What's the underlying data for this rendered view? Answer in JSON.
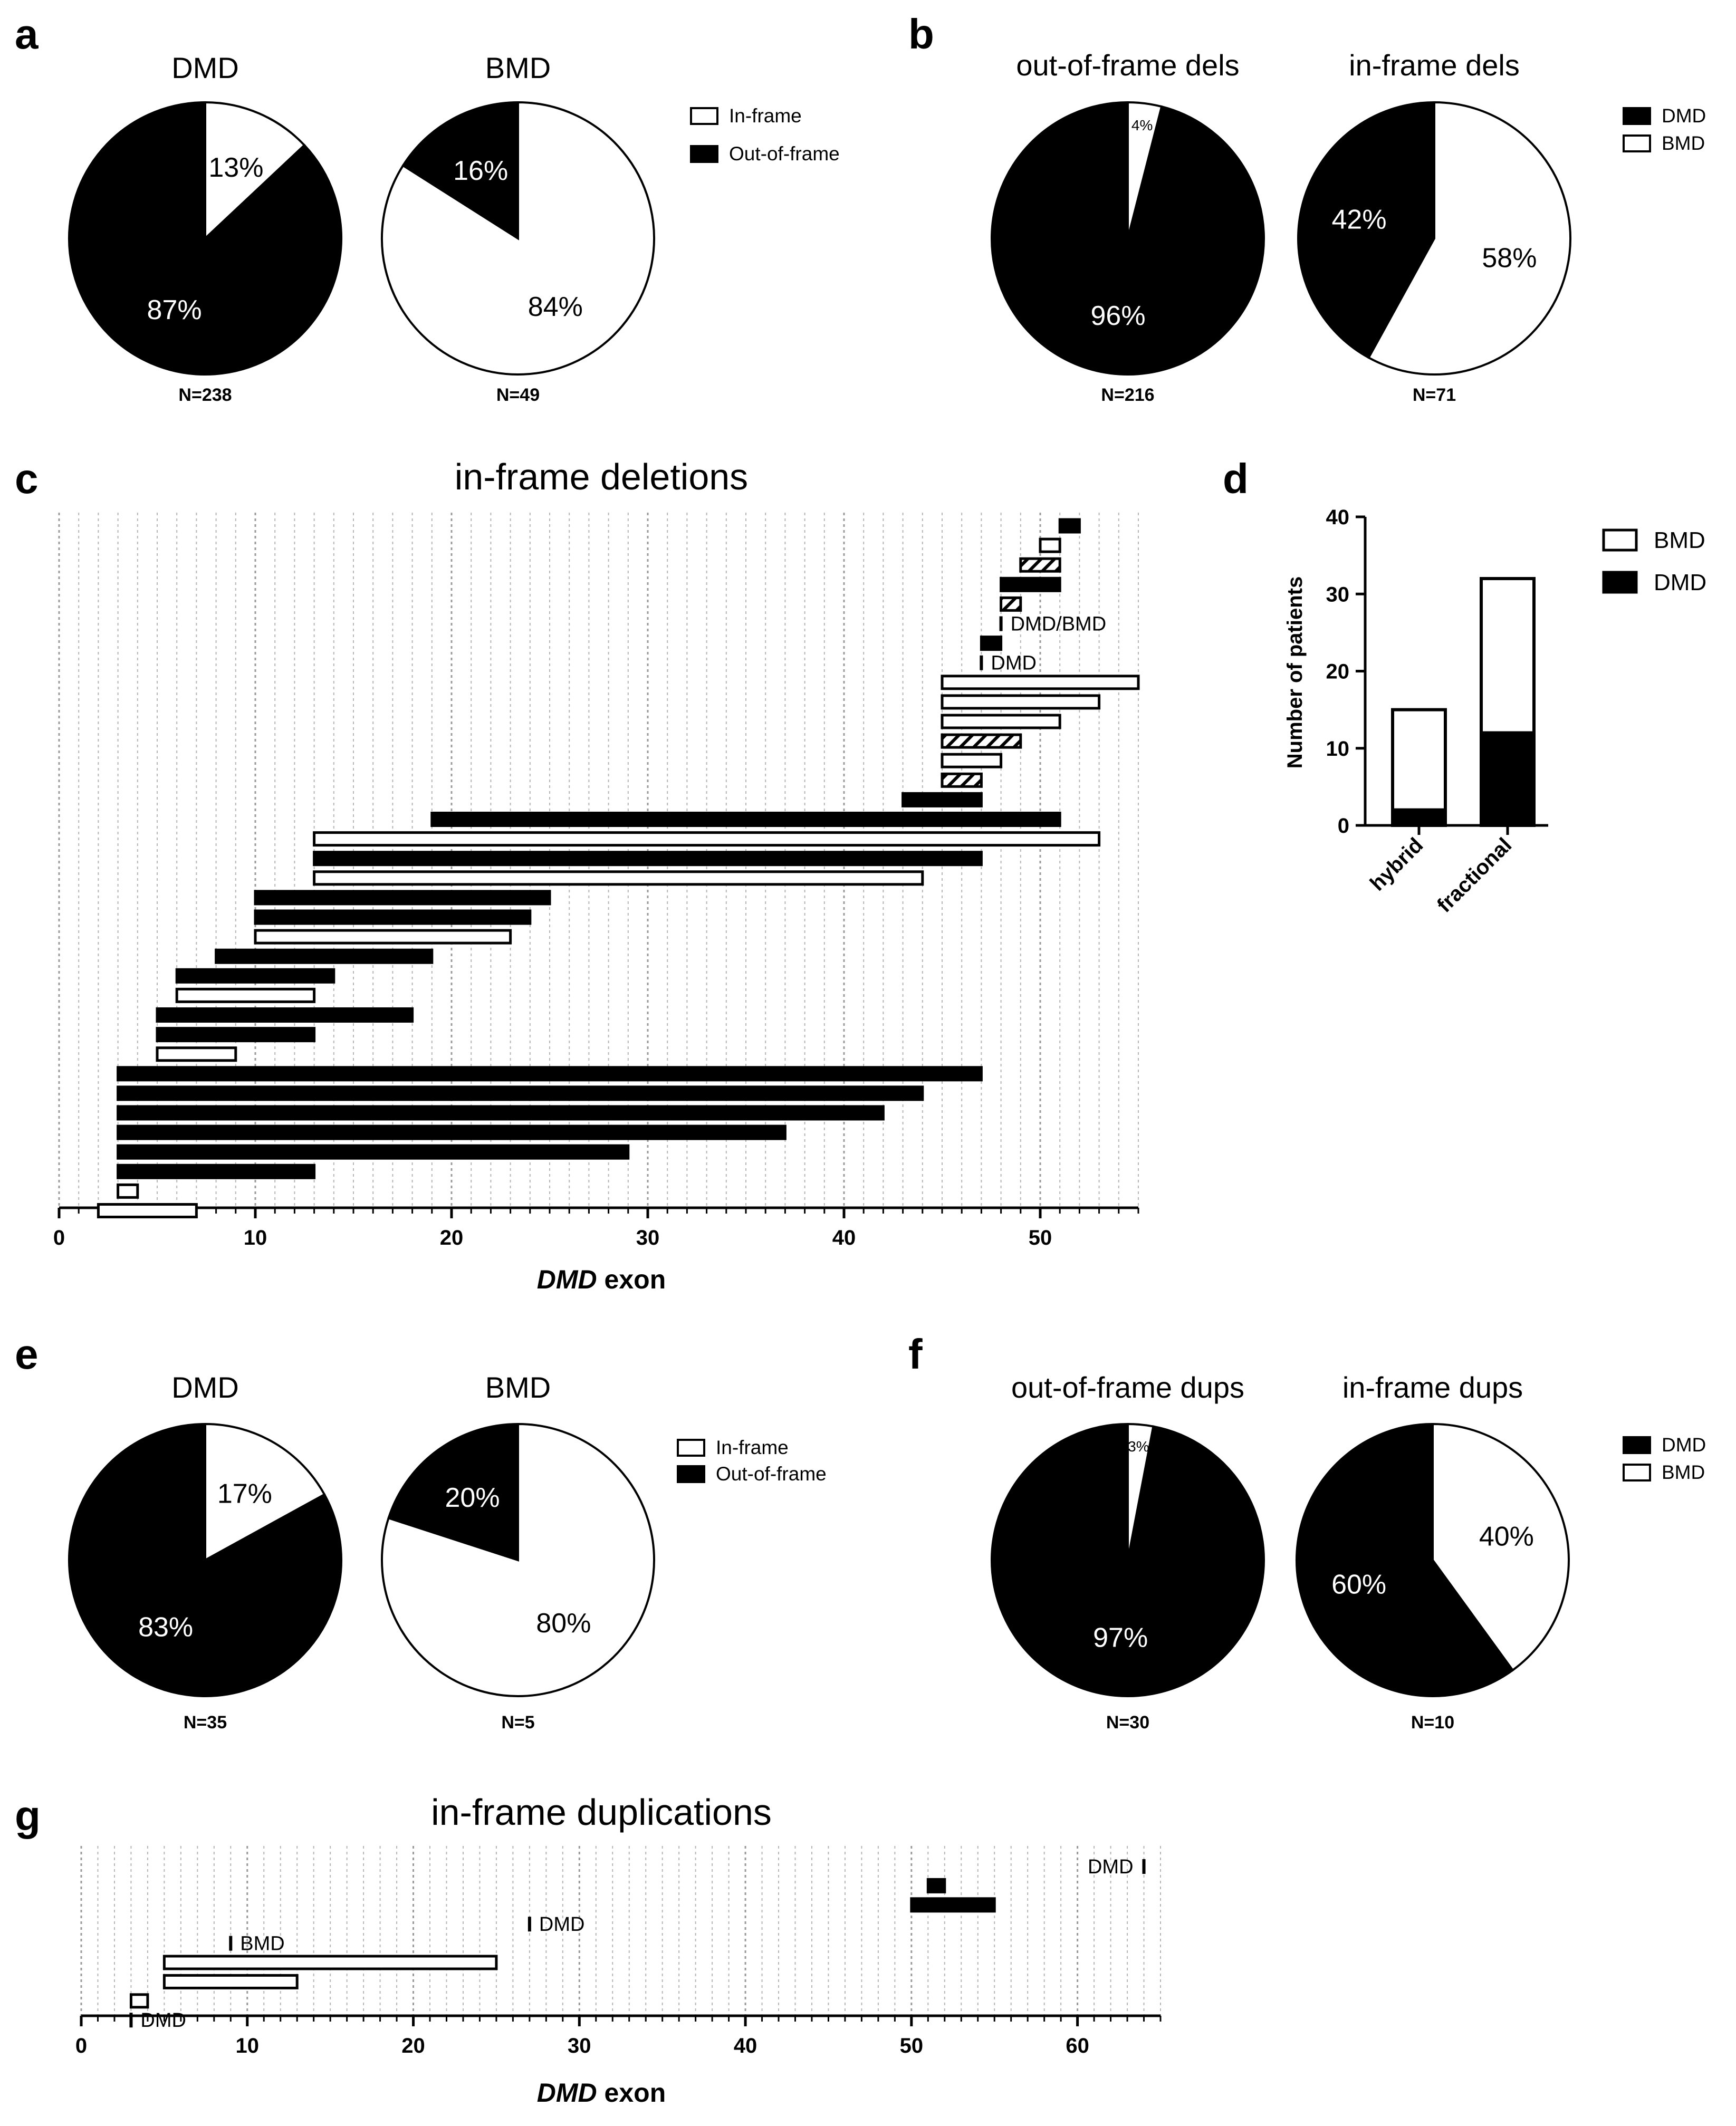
{
  "colors": {
    "dmd": "#000000",
    "bmd": "#ffffff",
    "grid": "#b5b5b5",
    "axis": "#000000"
  },
  "chart_data": [
    {
      "id": "a",
      "panel_letter": "a",
      "type": "pie",
      "legend": [
        "In-frame",
        "Out-of-frame"
      ],
      "pies": [
        {
          "title": "DMD",
          "n_label": "N=238",
          "slices": [
            {
              "label": "In-frame",
              "value": 13,
              "text": "13%",
              "fill": "white"
            },
            {
              "label": "Out-of-frame",
              "value": 87,
              "text": "87%",
              "fill": "black"
            }
          ]
        },
        {
          "title": "BMD",
          "n_label": "N=49",
          "slices": [
            {
              "label": "In-frame",
              "value": 84,
              "text": "84%",
              "fill": "white"
            },
            {
              "label": "Out-of-frame",
              "value": 16,
              "text": "16%",
              "fill": "black"
            }
          ]
        }
      ]
    },
    {
      "id": "b",
      "panel_letter": "b",
      "type": "pie",
      "legend": [
        "DMD",
        "BMD"
      ],
      "pies": [
        {
          "title": "out-of-frame dels",
          "n_label": "N=216",
          "slices": [
            {
              "label": "DMD",
              "value": 96,
              "text": "96%",
              "fill": "black"
            },
            {
              "label": "BMD",
              "value": 4,
              "text": "4%",
              "fill": "white"
            }
          ]
        },
        {
          "title": "in-frame dels",
          "n_label": "N=71",
          "slices": [
            {
              "label": "DMD",
              "value": 42,
              "text": "42%",
              "fill": "black"
            },
            {
              "label": "BMD",
              "value": 58,
              "text": "58%",
              "fill": "white"
            }
          ]
        }
      ]
    },
    {
      "id": "c",
      "panel_letter": "c",
      "type": "range-bar",
      "title": "in-frame deletions",
      "xlabel_italic": "DMD",
      "xlabel_rest": " exon",
      "xlim": [
        0,
        55
      ],
      "xticks": [
        0,
        10,
        20,
        30,
        40,
        50
      ],
      "bars": [
        {
          "start": 51,
          "end": 52,
          "fill": "black"
        },
        {
          "start": 50,
          "end": 51,
          "fill": "white"
        },
        {
          "start": 49,
          "end": 51,
          "fill": "hatch"
        },
        {
          "start": 48,
          "end": 51,
          "fill": "black"
        },
        {
          "start": 48,
          "end": 49,
          "fill": "hatch"
        },
        {
          "start": 48,
          "end": 48,
          "fill": "line",
          "label": "DMD/BMD"
        },
        {
          "start": 47,
          "end": 48,
          "fill": "black"
        },
        {
          "start": 47,
          "end": 47,
          "fill": "line",
          "label": "DMD"
        },
        {
          "start": 45,
          "end": 55,
          "fill": "white"
        },
        {
          "start": 45,
          "end": 53,
          "fill": "white"
        },
        {
          "start": 45,
          "end": 51,
          "fill": "white"
        },
        {
          "start": 45,
          "end": 49,
          "fill": "hatch"
        },
        {
          "start": 45,
          "end": 48,
          "fill": "white"
        },
        {
          "start": 45,
          "end": 47,
          "fill": "hatch"
        },
        {
          "start": 43,
          "end": 47,
          "fill": "black"
        },
        {
          "start": 19,
          "end": 51,
          "fill": "black"
        },
        {
          "start": 13,
          "end": 53,
          "fill": "white"
        },
        {
          "start": 13,
          "end": 47,
          "fill": "black"
        },
        {
          "start": 13,
          "end": 44,
          "fill": "white"
        },
        {
          "start": 10,
          "end": 25,
          "fill": "black"
        },
        {
          "start": 10,
          "end": 24,
          "fill": "black"
        },
        {
          "start": 10,
          "end": 23,
          "fill": "white"
        },
        {
          "start": 8,
          "end": 19,
          "fill": "black"
        },
        {
          "start": 6,
          "end": 14,
          "fill": "black"
        },
        {
          "start": 6,
          "end": 13,
          "fill": "white"
        },
        {
          "start": 5,
          "end": 18,
          "fill": "black"
        },
        {
          "start": 5,
          "end": 13,
          "fill": "black"
        },
        {
          "start": 5,
          "end": 9,
          "fill": "white"
        },
        {
          "start": 3,
          "end": 47,
          "fill": "black"
        },
        {
          "start": 3,
          "end": 44,
          "fill": "black"
        },
        {
          "start": 3,
          "end": 42,
          "fill": "black"
        },
        {
          "start": 3,
          "end": 37,
          "fill": "black"
        },
        {
          "start": 3,
          "end": 29,
          "fill": "black"
        },
        {
          "start": 3,
          "end": 13,
          "fill": "black"
        },
        {
          "start": 3,
          "end": 4,
          "fill": "white"
        },
        {
          "start": 2,
          "end": 7,
          "fill": "white"
        }
      ]
    },
    {
      "id": "d",
      "panel_letter": "d",
      "type": "stacked-bar",
      "categories": [
        "hybrid",
        "fractional"
      ],
      "series": [
        {
          "name": "DMD",
          "values": [
            2,
            12
          ]
        },
        {
          "name": "BMD",
          "values": [
            13,
            20
          ]
        }
      ],
      "legend": [
        "BMD",
        "DMD"
      ],
      "ylabel": "Number of patients",
      "ylim": [
        0,
        40
      ],
      "yticks": [
        0,
        10,
        20,
        30,
        40
      ]
    },
    {
      "id": "e",
      "panel_letter": "e",
      "type": "pie",
      "legend": [
        "In-frame",
        "Out-of-frame"
      ],
      "pies": [
        {
          "title": "DMD",
          "n_label": "N=35",
          "slices": [
            {
              "label": "In-frame",
              "value": 17,
              "text": "17%",
              "fill": "white"
            },
            {
              "label": "Out-of-frame",
              "value": 83,
              "text": "83%",
              "fill": "black"
            }
          ]
        },
        {
          "title": "BMD",
          "n_label": "N=5",
          "slices": [
            {
              "label": "In-frame",
              "value": 80,
              "text": "80%",
              "fill": "white"
            },
            {
              "label": "Out-of-frame",
              "value": 20,
              "text": "20%",
              "fill": "black"
            }
          ]
        }
      ]
    },
    {
      "id": "f",
      "panel_letter": "f",
      "type": "pie",
      "legend": [
        "DMD",
        "BMD"
      ],
      "pies": [
        {
          "title": "out-of-frame dups",
          "n_label": "N=30",
          "slices": [
            {
              "label": "DMD",
              "value": 97,
              "text": "97%",
              "fill": "black"
            },
            {
              "label": "BMD",
              "value": 3,
              "text": "3%",
              "fill": "white"
            }
          ]
        },
        {
          "title": "in-frame dups",
          "n_label": "N=10",
          "slices": [
            {
              "label": "DMD",
              "value": 60,
              "text": "60%",
              "fill": "black"
            },
            {
              "label": "BMD",
              "value": 40,
              "text": "40%",
              "fill": "white"
            }
          ]
        }
      ]
    },
    {
      "id": "g",
      "panel_letter": "g",
      "type": "range-bar",
      "title": "in-frame duplications",
      "xlabel_italic": "DMD",
      "xlabel_rest": " exon",
      "xlim": [
        0,
        65
      ],
      "xticks": [
        0,
        10,
        20,
        30,
        40,
        50,
        60
      ],
      "bars": [
        {
          "start": 64,
          "end": 64,
          "fill": "line",
          "label": "DMD",
          "label_side": "left"
        },
        {
          "start": 51,
          "end": 52,
          "fill": "black"
        },
        {
          "start": 50,
          "end": 55,
          "fill": "black"
        },
        {
          "start": 27,
          "end": 27,
          "fill": "line",
          "label": "DMD"
        },
        {
          "start": 9,
          "end": 9,
          "fill": "line",
          "label": "BMD"
        },
        {
          "start": 5,
          "end": 25,
          "fill": "white"
        },
        {
          "start": 5,
          "end": 13,
          "fill": "white"
        },
        {
          "start": 3,
          "end": 4,
          "fill": "white"
        },
        {
          "start": 3,
          "end": 3,
          "fill": "line",
          "label": "DMD"
        }
      ]
    }
  ]
}
